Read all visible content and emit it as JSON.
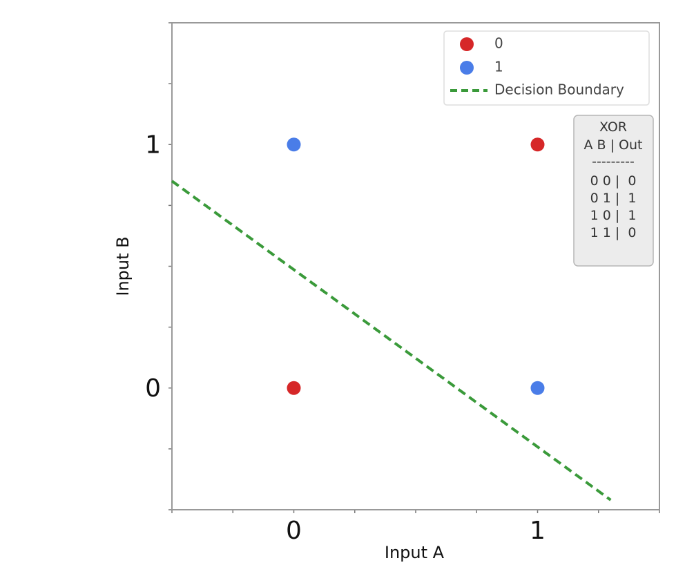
{
  "chart_data": {
    "type": "scatter",
    "xlabel": "Input A",
    "ylabel": "Input B",
    "xlim": [
      -0.5,
      1.5
    ],
    "ylim": [
      -0.5,
      1.5
    ],
    "xticks": [
      0,
      1
    ],
    "yticks": [
      0,
      1
    ],
    "grid": false,
    "legend_position": "top-right",
    "series": [
      {
        "name": "0",
        "color": "#d62728",
        "points": [
          [
            0,
            0
          ],
          [
            1,
            1
          ]
        ]
      },
      {
        "name": "1",
        "color": "#4a7de8",
        "points": [
          [
            0,
            1
          ],
          [
            1,
            0
          ]
        ]
      }
    ],
    "decision_boundary": {
      "name": "Decision Boundary",
      "color": "#3a9a3a",
      "style": "dashed",
      "points": [
        [
          -0.5,
          0.85
        ],
        [
          1.3,
          -0.46
        ]
      ]
    },
    "annotation_table": {
      "title": "XOR",
      "header": "A B | Out",
      "separator": "---------",
      "rows": [
        "0 0 |  0",
        "0 1 |  1",
        "1 0 |  1",
        "1 1 |  0"
      ]
    }
  }
}
